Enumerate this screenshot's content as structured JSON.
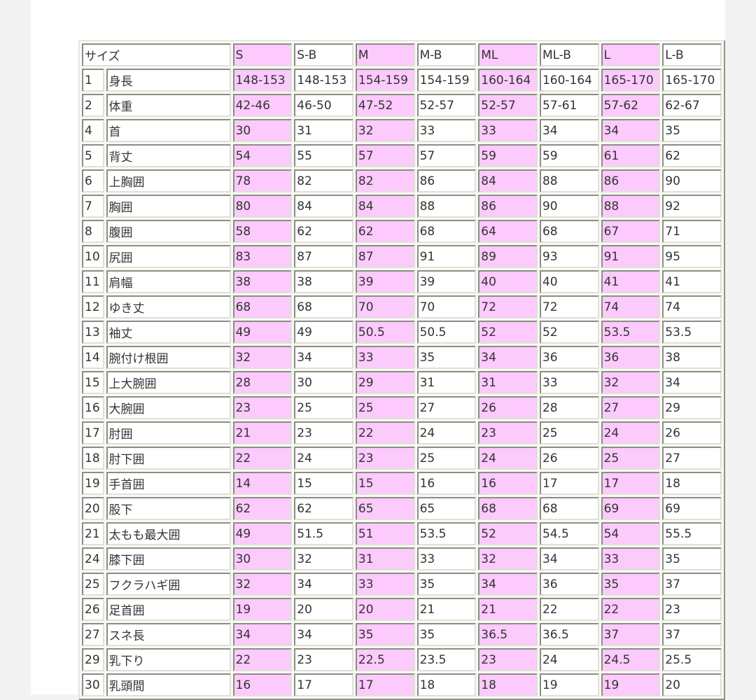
{
  "table": {
    "header_label": "サイズ",
    "sizes": [
      "S",
      "S-B",
      "M",
      "M-B",
      "ML",
      "ML-B",
      "L",
      "L-B"
    ],
    "highlight_color": "#fccafc",
    "rows": [
      {
        "no": "1",
        "name": "身長",
        "values": [
          "148-153",
          "148-153",
          "154-159",
          "154-159",
          "160-164",
          "160-164",
          "165-170",
          "165-170"
        ]
      },
      {
        "no": "2",
        "name": "体重",
        "values": [
          "42-46",
          "46-50",
          "47-52",
          "52-57",
          "52-57",
          "57-61",
          "57-62",
          "62-67"
        ]
      },
      {
        "no": "4",
        "name": "首",
        "values": [
          "30",
          "31",
          "32",
          "33",
          "33",
          "34",
          "34",
          "35"
        ]
      },
      {
        "no": "5",
        "name": "背丈",
        "values": [
          "54",
          "55",
          "57",
          "57",
          "59",
          "59",
          "61",
          "62"
        ]
      },
      {
        "no": "6",
        "name": "上胸囲",
        "values": [
          "78",
          "82",
          "82",
          "86",
          "84",
          "88",
          "86",
          "90"
        ]
      },
      {
        "no": "7",
        "name": "胸囲",
        "values": [
          "80",
          "84",
          "84",
          "88",
          "86",
          "90",
          "88",
          "92"
        ]
      },
      {
        "no": "8",
        "name": "腹囲",
        "values": [
          "58",
          "62",
          "62",
          "68",
          "64",
          "68",
          "67",
          "71"
        ]
      },
      {
        "no": "10",
        "name": "尻囲",
        "values": [
          "83",
          "87",
          "87",
          "91",
          "89",
          "93",
          "91",
          "95"
        ]
      },
      {
        "no": "11",
        "name": "肩幅",
        "values": [
          "38",
          "38",
          "39",
          "39",
          "40",
          "40",
          "41",
          "41"
        ]
      },
      {
        "no": "12",
        "name": "ゆき丈",
        "values": [
          "68",
          "68",
          "70",
          "70",
          "72",
          "72",
          "74",
          "74"
        ]
      },
      {
        "no": "13",
        "name": "袖丈",
        "values": [
          "49",
          "49",
          "50.5",
          "50.5",
          "52",
          "52",
          "53.5",
          "53.5"
        ]
      },
      {
        "no": "14",
        "name": "腕付け根囲",
        "values": [
          "32",
          "34",
          "33",
          "35",
          "34",
          "36",
          "36",
          "38"
        ]
      },
      {
        "no": "15",
        "name": "上大腕囲",
        "values": [
          "28",
          "30",
          "29",
          "31",
          "31",
          "33",
          "32",
          "34"
        ]
      },
      {
        "no": "16",
        "name": "大腕囲",
        "values": [
          "23",
          "25",
          "25",
          "27",
          "26",
          "28",
          "27",
          "29"
        ]
      },
      {
        "no": "17",
        "name": "肘囲",
        "values": [
          "21",
          "23",
          "22",
          "24",
          "23",
          "25",
          "24",
          "26"
        ]
      },
      {
        "no": "18",
        "name": "肘下囲",
        "values": [
          "22",
          "24",
          "23",
          "25",
          "24",
          "26",
          "25",
          "27"
        ]
      },
      {
        "no": "19",
        "name": "手首囲",
        "values": [
          "14",
          "15",
          "15",
          "16",
          "16",
          "17",
          "17",
          "18"
        ]
      },
      {
        "no": "20",
        "name": "股下",
        "values": [
          "62",
          "62",
          "65",
          "65",
          "68",
          "68",
          "69",
          "69"
        ]
      },
      {
        "no": "21",
        "name": "太もも最大囲",
        "values": [
          "49",
          "51.5",
          "51",
          "53.5",
          "52",
          "54.5",
          "54",
          "55.5"
        ]
      },
      {
        "no": "24",
        "name": "膝下囲",
        "values": [
          "30",
          "32",
          "31",
          "33",
          "32",
          "34",
          "33",
          "35"
        ]
      },
      {
        "no": "25",
        "name": "フクラハギ囲",
        "values": [
          "32",
          "34",
          "33",
          "35",
          "34",
          "36",
          "35",
          "37"
        ]
      },
      {
        "no": "26",
        "name": "足首囲",
        "values": [
          "19",
          "20",
          "20",
          "21",
          "21",
          "22",
          "22",
          "23"
        ]
      },
      {
        "no": "27",
        "name": "スネ長",
        "values": [
          "34",
          "34",
          "35",
          "35",
          "36.5",
          "36.5",
          "37",
          "37"
        ]
      },
      {
        "no": "29",
        "name": "乳下り",
        "values": [
          "22",
          "23",
          "22.5",
          "23.5",
          "23",
          "24",
          "24.5",
          "25.5"
        ]
      },
      {
        "no": "30",
        "name": "乳頭間",
        "values": [
          "16",
          "17",
          "17",
          "18",
          "18",
          "19",
          "19",
          "20"
        ]
      }
    ]
  }
}
